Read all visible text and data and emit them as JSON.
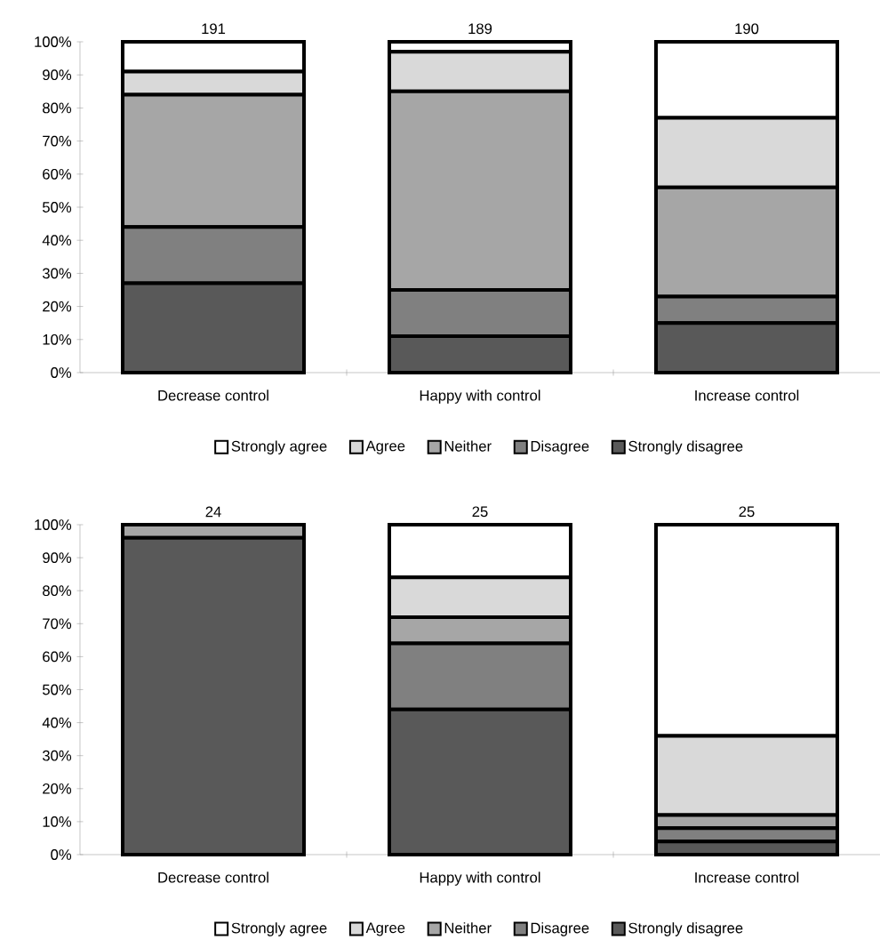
{
  "chart_data": [
    {
      "type": "bar",
      "stacked": true,
      "categories": [
        "Decrease control",
        "Happy with control",
        "Increase control"
      ],
      "series": [
        {
          "name": "Strongly disagree",
          "color": "#595959",
          "values": [
            27,
            11,
            15
          ]
        },
        {
          "name": "Disagree",
          "color": "#808080",
          "values": [
            17,
            14,
            8
          ]
        },
        {
          "name": "Neither",
          "color": "#a6a6a6",
          "values": [
            40,
            60,
            33
          ]
        },
        {
          "name": "Agree",
          "color": "#d9d9d9",
          "values": [
            7,
            12,
            21
          ]
        },
        {
          "name": "Strongly agree",
          "color": "#ffffff",
          "values": [
            9,
            3,
            23
          ]
        }
      ],
      "ylim": [
        0,
        100
      ],
      "yticks": [
        {
          "value": 0,
          "label": "0%"
        },
        {
          "value": 10,
          "label": "10%"
        },
        {
          "value": 20,
          "label": "20%"
        },
        {
          "value": 30,
          "label": "30%"
        },
        {
          "value": 40,
          "label": "40%"
        },
        {
          "value": 50,
          "label": "50%"
        },
        {
          "value": 60,
          "label": "60%"
        },
        {
          "value": 70,
          "label": "70%"
        },
        {
          "value": 80,
          "label": "80%"
        },
        {
          "value": 90,
          "label": "90%"
        },
        {
          "value": 100,
          "label": "100%"
        }
      ],
      "annotations": [
        {
          "text": "191",
          "x": "Decrease control",
          "y": 100
        },
        {
          "text": "189",
          "x": "Happy with control",
          "y": 100
        },
        {
          "text": "190",
          "x": "Increase control",
          "y": 100
        }
      ],
      "legend": "bottom",
      "grid": false
    },
    {
      "type": "bar",
      "stacked": true,
      "categories": [
        "Decrease control",
        "Happy with control",
        "Increase control"
      ],
      "series": [
        {
          "name": "Strongly disagree",
          "color": "#595959",
          "values": [
            96,
            44,
            4
          ]
        },
        {
          "name": "Disagree",
          "color": "#808080",
          "values": [
            0,
            20,
            4
          ]
        },
        {
          "name": "Neither",
          "color": "#a6a6a6",
          "values": [
            4,
            8,
            4
          ]
        },
        {
          "name": "Agree",
          "color": "#d9d9d9",
          "values": [
            0,
            12,
            24
          ]
        },
        {
          "name": "Strongly agree",
          "color": "#ffffff",
          "values": [
            0,
            16,
            64
          ]
        }
      ],
      "ylim": [
        0,
        100
      ],
      "yticks": [
        {
          "value": 0,
          "label": "0%"
        },
        {
          "value": 10,
          "label": "10%"
        },
        {
          "value": 20,
          "label": "20%"
        },
        {
          "value": 30,
          "label": "30%"
        },
        {
          "value": 40,
          "label": "40%"
        },
        {
          "value": 50,
          "label": "50%"
        },
        {
          "value": 60,
          "label": "60%"
        },
        {
          "value": 70,
          "label": "70%"
        },
        {
          "value": 80,
          "label": "80%"
        },
        {
          "value": 90,
          "label": "90%"
        },
        {
          "value": 100,
          "label": "100%"
        }
      ],
      "annotations": [
        {
          "text": "24",
          "x": "Decrease control",
          "y": 100
        },
        {
          "text": "25",
          "x": "Happy with control",
          "y": 100
        },
        {
          "text": "25",
          "x": "Increase control",
          "y": 100
        }
      ],
      "legend": "bottom",
      "grid": false
    }
  ]
}
